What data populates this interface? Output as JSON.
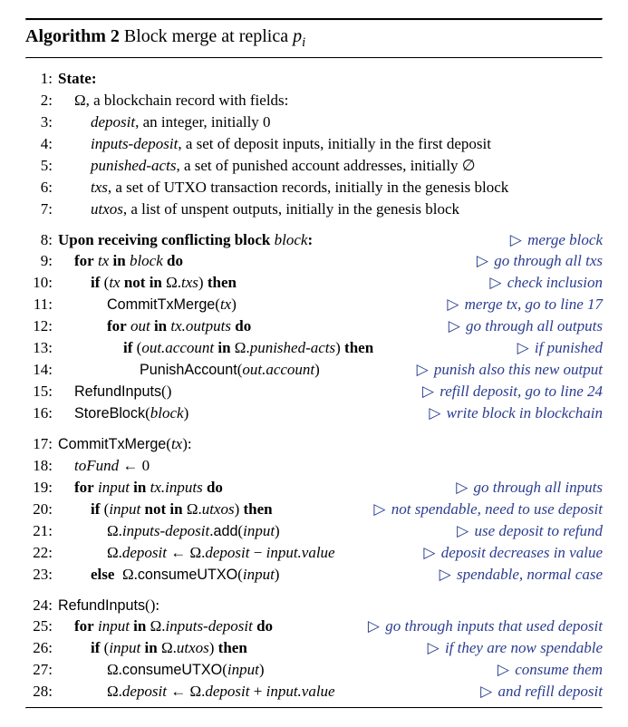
{
  "algorithm": {
    "number": "2",
    "title_prefix": "Algorithm 2",
    "title_rest": "Block merge at replica ",
    "title_var": "p",
    "title_sub": "i"
  },
  "comment_color": "#2a3d8f",
  "lines": [
    {
      "n": "1:",
      "indent": 0,
      "code_html": "<span class='kw'>State:</span>",
      "comment": ""
    },
    {
      "n": "2:",
      "indent": 1,
      "code_html": "Ω, a blockchain record with fields:",
      "comment": ""
    },
    {
      "n": "3:",
      "indent": 2,
      "code_html": "<span class='it'>deposit</span>, an integer, initially 0",
      "comment": ""
    },
    {
      "n": "4:",
      "indent": 2,
      "code_html": "<span class='it'>inputs-deposit</span>, a set of deposit inputs, initially in the first deposit",
      "comment": ""
    },
    {
      "n": "5:",
      "indent": 2,
      "code_html": "<span class='it'>punished-acts</span>, a set of punished account addresses, initially ∅",
      "comment": ""
    },
    {
      "n": "6:",
      "indent": 2,
      "code_html": "<span class='it'>txs</span>, a set of UTXO transaction records, initially in the genesis block",
      "comment": ""
    },
    {
      "n": "7:",
      "indent": 2,
      "code_html": "<span class='it'>utxos</span>, a list of unspent outputs, initially in the genesis block",
      "comment": ""
    },
    {
      "gap": true
    },
    {
      "n": "8:",
      "indent": 0,
      "code_html": "<span class='kw'>Upon receiving conflicting block</span> <span class='it'>block</span><span class='kw'>:</span>",
      "comment": "merge block"
    },
    {
      "n": "9:",
      "indent": 1,
      "code_html": "<span class='kw'>for</span> <span class='it'>tx</span> <span class='kw'>in</span> <span class='it'>block</span> <span class='kw'>do</span>",
      "comment": "go through all txs"
    },
    {
      "n": "10:",
      "indent": 2,
      "code_html": "<span class='kw'>if</span> (<span class='it'>tx</span> <span class='kw'>not in</span> Ω.<span class='it'>txs</span>) <span class='kw'>then</span>",
      "comment": "check inclusion"
    },
    {
      "n": "11:",
      "indent": 3,
      "code_html": "<span class='sf'>CommitTxMerge</span>(<span class='it'>tx</span>)",
      "comment": "merge tx, go to line 17"
    },
    {
      "n": "12:",
      "indent": 3,
      "code_html": "<span class='kw'>for</span> <span class='it'>out</span> <span class='kw'>in</span> <span class='it'>tx.outputs</span> <span class='kw'>do</span>",
      "comment": "go through all outputs"
    },
    {
      "n": "13:",
      "indent": 4,
      "code_html": "<span class='kw'>if</span> (<span class='it'>out.account</span> <span class='kw'>in</span> Ω.<span class='it'>punished-acts</span>) <span class='kw'>then</span>",
      "comment": "if punished"
    },
    {
      "n": "14:",
      "indent": 5,
      "code_html": "<span class='sf'>PunishAccount</span>(<span class='it'>out.account</span>)",
      "comment": "punish also this new output"
    },
    {
      "n": "15:",
      "indent": 1,
      "code_html": "<span class='sf'>RefundInputs</span>()",
      "comment": "refill deposit, go to line 24"
    },
    {
      "n": "16:",
      "indent": 1,
      "code_html": "<span class='sf'>StoreBlock</span>(<span class='it'>block</span>)",
      "comment": "write block in blockchain"
    },
    {
      "gap": true
    },
    {
      "n": "17:",
      "indent": 0,
      "code_html": "<span class='sf'>CommitTxMerge</span>(<span class='it'>tx</span>):",
      "comment": ""
    },
    {
      "n": "18:",
      "indent": 1,
      "code_html": "<span class='it'>toFund</span> ← 0",
      "comment": ""
    },
    {
      "n": "19:",
      "indent": 1,
      "code_html": "<span class='kw'>for</span> <span class='it'>input</span> <span class='kw'>in</span> <span class='it'>tx.inputs</span> <span class='kw'>do</span>",
      "comment": "go through all inputs"
    },
    {
      "n": "20:",
      "indent": 2,
      "code_html": "<span class='kw'>if</span> (<span class='it'>input</span> <span class='kw'>not in</span> Ω.<span class='it'>utxos</span>) <span class='kw'>then</span>",
      "comment": "not spendable, need to use deposit"
    },
    {
      "n": "21:",
      "indent": 3,
      "code_html": "Ω.<span class='it'>inputs-deposit</span>.<span class='sf'>add</span>(<span class='it'>input</span>)",
      "comment": "use deposit to refund"
    },
    {
      "n": "22:",
      "indent": 3,
      "code_html": "Ω.<span class='it'>deposit</span> ← Ω.<span class='it'>deposit</span> − <span class='it'>input.value</span>",
      "comment": "deposit decreases in value"
    },
    {
      "n": "23:",
      "indent": 2,
      "code_html": "<span class='kw'>else</span>  Ω.<span class='sf'>consumeUTXO</span>(<span class='it'>input</span>)",
      "comment": "spendable, normal case"
    },
    {
      "gap": true
    },
    {
      "n": "24:",
      "indent": 0,
      "code_html": "<span class='sf'>RefundInputs</span>():",
      "comment": ""
    },
    {
      "n": "25:",
      "indent": 1,
      "code_html": "<span class='kw'>for</span> <span class='it'>input</span> <span class='kw'>in</span> Ω.<span class='it'>inputs-deposit</span> <span class='kw'>do</span>",
      "comment": "go through inputs that used deposit"
    },
    {
      "n": "26:",
      "indent": 2,
      "code_html": "<span class='kw'>if</span> (<span class='it'>input</span> <span class='kw'>in</span> Ω.<span class='it'>utxos</span>) <span class='kw'>then</span>",
      "comment": "if they are now spendable"
    },
    {
      "n": "27:",
      "indent": 3,
      "code_html": "Ω.<span class='sf'>consumeUTXO</span>(<span class='it'>input</span>)",
      "comment": "consume them"
    },
    {
      "n": "28:",
      "indent": 3,
      "code_html": "Ω.<span class='it'>deposit</span> ← Ω.<span class='it'>deposit</span> + <span class='it'>input.value</span>",
      "comment": "and refill deposit"
    }
  ]
}
